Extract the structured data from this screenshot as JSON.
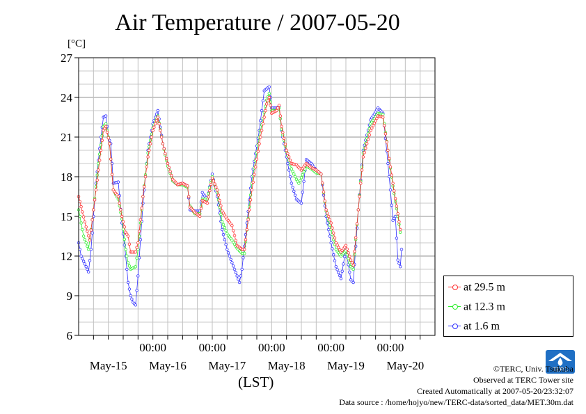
{
  "title": "Air Temperature / 2007-05-20",
  "unit_label": "[°C]",
  "xlabel": "(LST)",
  "legend": [
    {
      "label": "at 29.5 m",
      "color": "#ff3030"
    },
    {
      "label": "at 12.3 m",
      "color": "#30ee30"
    },
    {
      "label": "at 1.6 m",
      "color": "#3030ff"
    }
  ],
  "credits": {
    "copyright": "©TERC, Univ. Tsukuba",
    "observed": "Observed at TERC Tower site",
    "created": "Created Automatically at 2007-05-20/23:32:07",
    "source": "Data source : /home/hojyo/new/TERC-data/sorted_data/MET.30m.dat"
  },
  "logo_text": "TERC",
  "chart_data": {
    "type": "line",
    "title": "Air Temperature / 2007-05-20",
    "xlabel": "(LST)",
    "ylabel": "[°C]",
    "x_unit": "hours from 2007-05-14 18:00 LST",
    "xlim": [
      0,
      144
    ],
    "ylim": [
      6,
      27
    ],
    "yticks": [
      6,
      9,
      12,
      15,
      18,
      21,
      24,
      27
    ],
    "xticks": [
      {
        "x": 30,
        "label": "00:00"
      },
      {
        "x": 54,
        "label": "00:00"
      },
      {
        "x": 78,
        "label": "00:00"
      },
      {
        "x": 102,
        "label": "00:00"
      },
      {
        "x": 126,
        "label": "00:00"
      }
    ],
    "date_labels": [
      {
        "x": 12,
        "label": "May-15"
      },
      {
        "x": 36,
        "label": "May-16"
      },
      {
        "x": 60,
        "label": "May-17"
      },
      {
        "x": 84,
        "label": "May-18"
      },
      {
        "x": 108,
        "label": "May-19"
      },
      {
        "x": 132,
        "label": "May-20"
      }
    ],
    "grid": true,
    "legend_position": "outside-right",
    "series": [
      {
        "name": "at 29.5 m",
        "color": "#ff3030",
        "points": [
          [
            0,
            16.5
          ],
          [
            3,
            14.2
          ],
          [
            4.5,
            13.2
          ],
          [
            6,
            15.5
          ],
          [
            8,
            18.5
          ],
          [
            10,
            21.5
          ],
          [
            11,
            21.8
          ],
          [
            12.5,
            20.5
          ],
          [
            14,
            17.0
          ],
          [
            16,
            16.5
          ],
          [
            17.5,
            15.0
          ],
          [
            19,
            13.8
          ],
          [
            20,
            13.5
          ],
          [
            21,
            12.3
          ],
          [
            23,
            12.3
          ],
          [
            24,
            13.0
          ],
          [
            26,
            16.5
          ],
          [
            28,
            19.5
          ],
          [
            30,
            21.5
          ],
          [
            32,
            22.5
          ],
          [
            34,
            20.5
          ],
          [
            36,
            19.0
          ],
          [
            38,
            17.8
          ],
          [
            40,
            17.4
          ],
          [
            42,
            17.5
          ],
          [
            44,
            17.3
          ],
          [
            45,
            15.7
          ],
          [
            47,
            15.3
          ],
          [
            49,
            15.0
          ],
          [
            50,
            16.2
          ],
          [
            52,
            16.0
          ],
          [
            54,
            17.9
          ],
          [
            56,
            17.0
          ],
          [
            58,
            15.4
          ],
          [
            60,
            14.8
          ],
          [
            62,
            14.3
          ],
          [
            64,
            12.8
          ],
          [
            66,
            12.5
          ],
          [
            67,
            12.5
          ],
          [
            70,
            17.0
          ],
          [
            73,
            20.5
          ],
          [
            76,
            23.5
          ],
          [
            77,
            24.0
          ],
          [
            78,
            22.8
          ],
          [
            80,
            23.0
          ],
          [
            81,
            23.4
          ],
          [
            82,
            21.8
          ],
          [
            84,
            20.0
          ],
          [
            86,
            19.0
          ],
          [
            88,
            18.9
          ],
          [
            90,
            18.5
          ],
          [
            92,
            19.0
          ],
          [
            94,
            18.7
          ],
          [
            96,
            18.5
          ],
          [
            98,
            18.2
          ],
          [
            100,
            15.5
          ],
          [
            102,
            14.5
          ],
          [
            104,
            13.0
          ],
          [
            106,
            12.3
          ],
          [
            108,
            12.8
          ],
          [
            110,
            11.7
          ],
          [
            111,
            11.3
          ],
          [
            113,
            15.5
          ],
          [
            115,
            19.5
          ],
          [
            118,
            21.5
          ],
          [
            121,
            22.6
          ],
          [
            123,
            22.5
          ],
          [
            125,
            20.0
          ],
          [
            127,
            17.5
          ],
          [
            129,
            15.2
          ],
          [
            130,
            14.0
          ]
        ]
      },
      {
        "name": "at 12.3 m",
        "color": "#30ee30",
        "points": [
          [
            0,
            15.5
          ],
          [
            2,
            13.5
          ],
          [
            4,
            12.5
          ],
          [
            6,
            15.5
          ],
          [
            8,
            19.0
          ],
          [
            10,
            21.8
          ],
          [
            11,
            22.0
          ],
          [
            12.5,
            20.5
          ],
          [
            14,
            17.0
          ],
          [
            16,
            16.3
          ],
          [
            17.5,
            14.8
          ],
          [
            19,
            12.5
          ],
          [
            20,
            11.5
          ],
          [
            21,
            11.0
          ],
          [
            23,
            11.2
          ],
          [
            24,
            12.5
          ],
          [
            26,
            16.5
          ],
          [
            28,
            19.8
          ],
          [
            30,
            21.7
          ],
          [
            32,
            22.6
          ],
          [
            34,
            20.5
          ],
          [
            36,
            18.8
          ],
          [
            38,
            17.7
          ],
          [
            40,
            17.4
          ],
          [
            42,
            17.4
          ],
          [
            44,
            17.2
          ],
          [
            45,
            15.8
          ],
          [
            47,
            15.2
          ],
          [
            49,
            15.2
          ],
          [
            50,
            16.3
          ],
          [
            52,
            16.3
          ],
          [
            54,
            18.0
          ],
          [
            56,
            16.8
          ],
          [
            58,
            14.6
          ],
          [
            60,
            13.7
          ],
          [
            62,
            13.2
          ],
          [
            64,
            12.6
          ],
          [
            66,
            12.2
          ],
          [
            67,
            12.2
          ],
          [
            70,
            17.5
          ],
          [
            73,
            21.0
          ],
          [
            76,
            23.8
          ],
          [
            77,
            24.3
          ],
          [
            78,
            23.0
          ],
          [
            80,
            23.0
          ],
          [
            81,
            23.2
          ],
          [
            82,
            21.6
          ],
          [
            84,
            19.9
          ],
          [
            86,
            18.6
          ],
          [
            88,
            17.8
          ],
          [
            89,
            17.5
          ],
          [
            92,
            18.8
          ],
          [
            94,
            18.6
          ],
          [
            96,
            18.3
          ],
          [
            98,
            18.2
          ],
          [
            100,
            15.4
          ],
          [
            102,
            14.0
          ],
          [
            104,
            12.5
          ],
          [
            106,
            12.0
          ],
          [
            108,
            12.4
          ],
          [
            110,
            11.2
          ],
          [
            111,
            11.0
          ],
          [
            113,
            15.5
          ],
          [
            115,
            19.8
          ],
          [
            118,
            22.0
          ],
          [
            121,
            22.8
          ],
          [
            123,
            22.7
          ],
          [
            125,
            20.0
          ],
          [
            127,
            17.3
          ],
          [
            129,
            15.0
          ],
          [
            130,
            13.8
          ]
        ]
      },
      {
        "name": "at 1.6 m",
        "color": "#3030ff",
        "points": [
          [
            0,
            13.0
          ],
          [
            1,
            12.0
          ],
          [
            3,
            11.2
          ],
          [
            4,
            10.8
          ],
          [
            5,
            12.5
          ],
          [
            7,
            17.5
          ],
          [
            9,
            21.0
          ],
          [
            10,
            22.5
          ],
          [
            11,
            22.6
          ],
          [
            12,
            21.0
          ],
          [
            13,
            20.5
          ],
          [
            14,
            17.5
          ],
          [
            16,
            17.6
          ],
          [
            17.5,
            14.5
          ],
          [
            19,
            12.0
          ],
          [
            20,
            10.0
          ],
          [
            21,
            9.0
          ],
          [
            22,
            8.5
          ],
          [
            23,
            8.3
          ],
          [
            24,
            10.5
          ],
          [
            26,
            16.0
          ],
          [
            28,
            20.0
          ],
          [
            30,
            22.0
          ],
          [
            32,
            23.0
          ],
          [
            34,
            20.5
          ],
          [
            36,
            19.0
          ],
          [
            38,
            17.7
          ],
          [
            40,
            17.4
          ],
          [
            42,
            17.5
          ],
          [
            44,
            17.3
          ],
          [
            45,
            15.5
          ],
          [
            47,
            15.4
          ],
          [
            49,
            15.4
          ],
          [
            50,
            16.8
          ],
          [
            52,
            16.3
          ],
          [
            54,
            18.2
          ],
          [
            56,
            16.5
          ],
          [
            58,
            14.0
          ],
          [
            60,
            12.5
          ],
          [
            62,
            11.5
          ],
          [
            64,
            10.5
          ],
          [
            65,
            10.0
          ],
          [
            66,
            11.0
          ],
          [
            70,
            18.0
          ],
          [
            73,
            21.5
          ],
          [
            75,
            24.5
          ],
          [
            77,
            24.8
          ],
          [
            78,
            23.2
          ],
          [
            80,
            23.2
          ],
          [
            81,
            23.3
          ],
          [
            82,
            21.5
          ],
          [
            84,
            19.5
          ],
          [
            86,
            17.5
          ],
          [
            88,
            16.3
          ],
          [
            90,
            16.0
          ],
          [
            92,
            19.3
          ],
          [
            94,
            19.0
          ],
          [
            96,
            18.5
          ],
          [
            98,
            18.2
          ],
          [
            100,
            15.0
          ],
          [
            102,
            13.0
          ],
          [
            104,
            11.2
          ],
          [
            106,
            10.3
          ],
          [
            108,
            12.5
          ],
          [
            110,
            10.2
          ],
          [
            111,
            10.0
          ],
          [
            113,
            15.5
          ],
          [
            115,
            20.0
          ],
          [
            118,
            22.3
          ],
          [
            121,
            23.2
          ],
          [
            123,
            22.8
          ],
          [
            125,
            19.0
          ],
          [
            126,
            17.0
          ],
          [
            127,
            14.7
          ],
          [
            128,
            15.0
          ],
          [
            129,
            11.7
          ],
          [
            130,
            11.2
          ],
          [
            130.5,
            12.5
          ]
        ]
      }
    ]
  }
}
